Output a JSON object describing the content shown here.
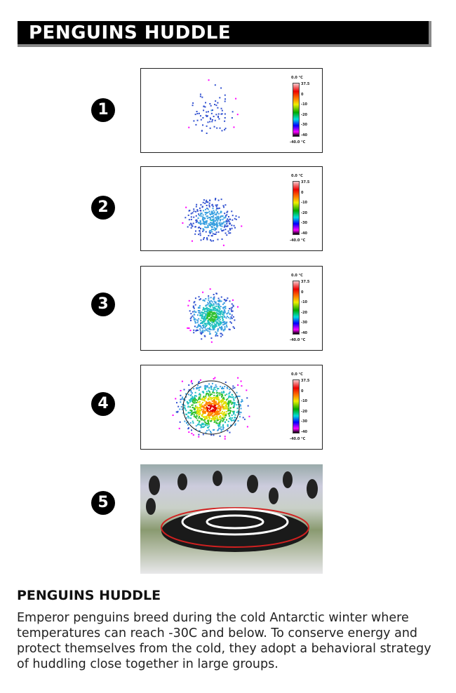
{
  "header": {
    "title": "PENGUINS HUDDLE"
  },
  "panels": [
    {
      "number": "1",
      "kind": "scatter"
    },
    {
      "number": "2",
      "kind": "scatter"
    },
    {
      "number": "3",
      "kind": "scatter"
    },
    {
      "number": "4",
      "kind": "scatter"
    },
    {
      "number": "5",
      "kind": "photo"
    }
  ],
  "colorbar": {
    "top_label": "0.0 °C",
    "bottom_label": "-40.0 °C",
    "ticks": [
      "37.5",
      "0",
      "-10",
      "-20",
      "-30",
      "-40"
    ]
  },
  "caption": {
    "title": "PENGUINS HUDDLE",
    "text": "Emperor penguins breed during the cold Antarctic winter where temperatures can reach -30C and below. To conserve energy and protect themselves from the cold, they adopt a behavioral strategy of huddling close together in large groups."
  },
  "colors": {
    "header_bg": "#000000",
    "header_border": "#888888",
    "huddle_ring": "#d02020"
  }
}
